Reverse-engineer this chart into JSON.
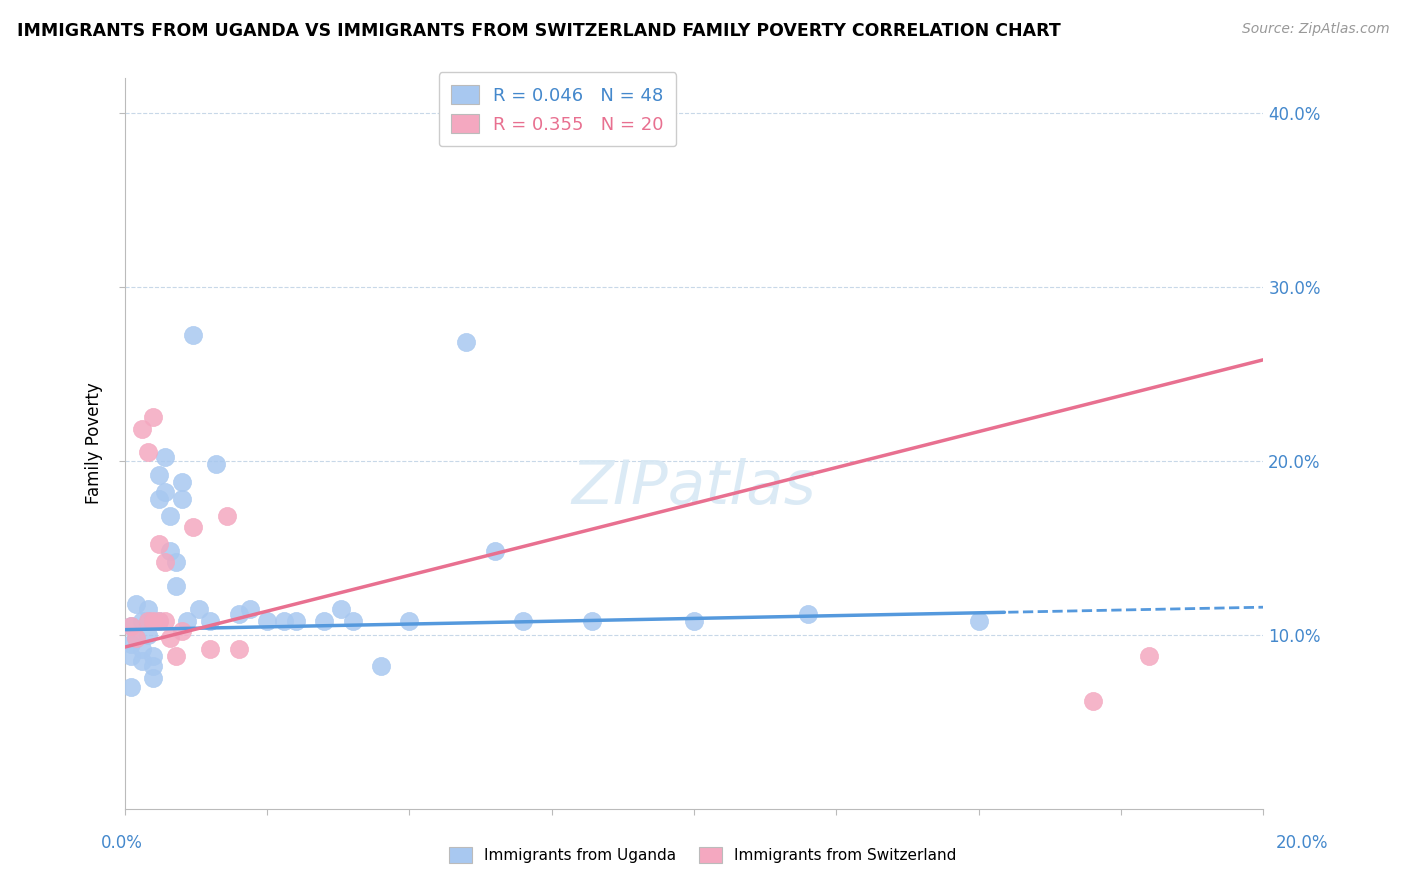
{
  "title": "IMMIGRANTS FROM UGANDA VS IMMIGRANTS FROM SWITZERLAND FAMILY POVERTY CORRELATION CHART",
  "source": "Source: ZipAtlas.com",
  "ylabel": "Family Poverty",
  "xlim": [
    0.0,
    0.2
  ],
  "ylim": [
    0.0,
    0.42
  ],
  "watermark": "ZIPatlas",
  "legend_uganda": "R = 0.046   N = 48",
  "legend_switzerland": "R = 0.355   N = 20",
  "color_uganda": "#a8c8f0",
  "color_switzerland": "#f4a8c0",
  "line_color_uganda": "#5599dd",
  "line_color_switzerland": "#e87090",
  "uganda_line_x": [
    0.0,
    0.155,
    0.155,
    0.2
  ],
  "uganda_line_y": [
    0.103,
    0.113,
    0.113,
    0.122
  ],
  "uganda_line_solid_end": 0.155,
  "switzerland_line_x0": 0.0,
  "switzerland_line_x1": 0.2,
  "switzerland_line_y0": 0.093,
  "switzerland_line_y1": 0.258,
  "uganda_x": [
    0.001,
    0.001,
    0.001,
    0.002,
    0.002,
    0.003,
    0.003,
    0.003,
    0.004,
    0.004,
    0.004,
    0.005,
    0.005,
    0.005,
    0.006,
    0.006,
    0.006,
    0.007,
    0.007,
    0.008,
    0.008,
    0.009,
    0.009,
    0.01,
    0.01,
    0.011,
    0.012,
    0.013,
    0.015,
    0.016,
    0.02,
    0.022,
    0.025,
    0.028,
    0.03,
    0.035,
    0.038,
    0.04,
    0.045,
    0.05,
    0.06,
    0.065,
    0.07,
    0.082,
    0.1,
    0.12,
    0.15,
    0.001
  ],
  "uganda_y": [
    0.105,
    0.095,
    0.088,
    0.118,
    0.098,
    0.108,
    0.092,
    0.085,
    0.115,
    0.108,
    0.1,
    0.088,
    0.082,
    0.075,
    0.192,
    0.178,
    0.108,
    0.202,
    0.182,
    0.168,
    0.148,
    0.142,
    0.128,
    0.188,
    0.178,
    0.108,
    0.272,
    0.115,
    0.108,
    0.198,
    0.112,
    0.115,
    0.108,
    0.108,
    0.108,
    0.108,
    0.115,
    0.108,
    0.082,
    0.108,
    0.268,
    0.148,
    0.108,
    0.108,
    0.108,
    0.112,
    0.108,
    0.07
  ],
  "switzerland_x": [
    0.001,
    0.002,
    0.003,
    0.004,
    0.004,
    0.005,
    0.005,
    0.006,
    0.006,
    0.007,
    0.007,
    0.008,
    0.009,
    0.01,
    0.012,
    0.015,
    0.018,
    0.02,
    0.17,
    0.18
  ],
  "switzerland_y": [
    0.105,
    0.098,
    0.218,
    0.205,
    0.108,
    0.225,
    0.108,
    0.152,
    0.108,
    0.142,
    0.108,
    0.098,
    0.088,
    0.102,
    0.162,
    0.092,
    0.168,
    0.092,
    0.062,
    0.088
  ]
}
